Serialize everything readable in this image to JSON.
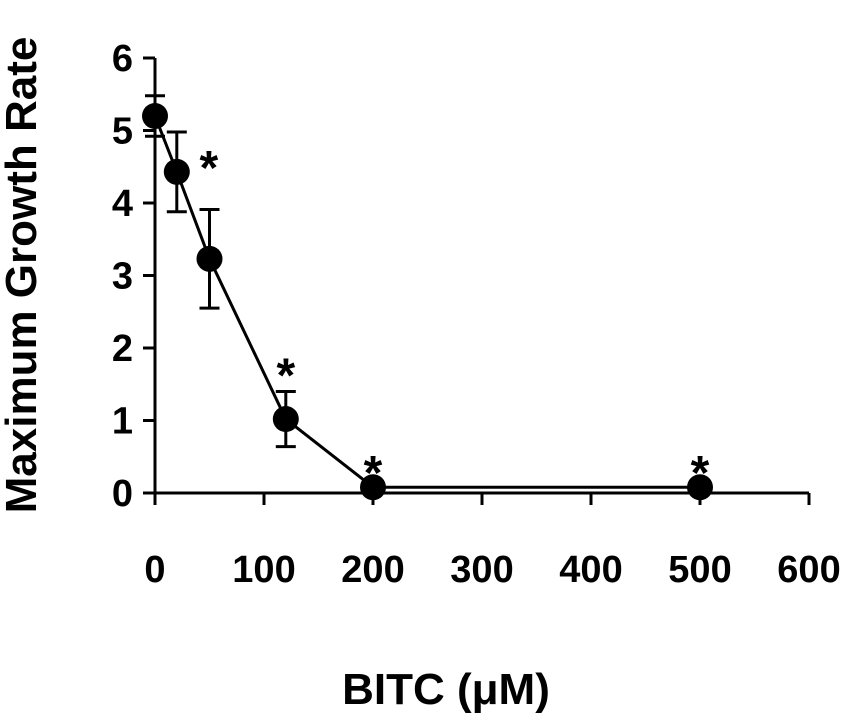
{
  "chart_data": {
    "type": "line",
    "xlabel": "BITC (μM)",
    "ylabel": "Maximum Growth Rate",
    "xlim": [
      0,
      600
    ],
    "ylim": [
      0,
      6
    ],
    "xticks": [
      0,
      100,
      200,
      300,
      400,
      500,
      600
    ],
    "yticks": [
      0,
      1,
      2,
      3,
      4,
      5,
      6
    ],
    "grid": false,
    "series": [
      {
        "x": [
          0,
          20,
          50,
          120,
          200,
          500
        ],
        "y": [
          5.2,
          4.43,
          3.23,
          1.02,
          0.08,
          0.08
        ],
        "error": [
          0.28,
          0.55,
          0.68,
          0.38,
          0.0,
          0.0
        ],
        "significant": [
          false,
          true,
          false,
          true,
          true,
          true
        ]
      }
    ],
    "annotation_symbol": "*",
    "colors": {
      "line": "#000000",
      "marker": "#000000"
    }
  }
}
